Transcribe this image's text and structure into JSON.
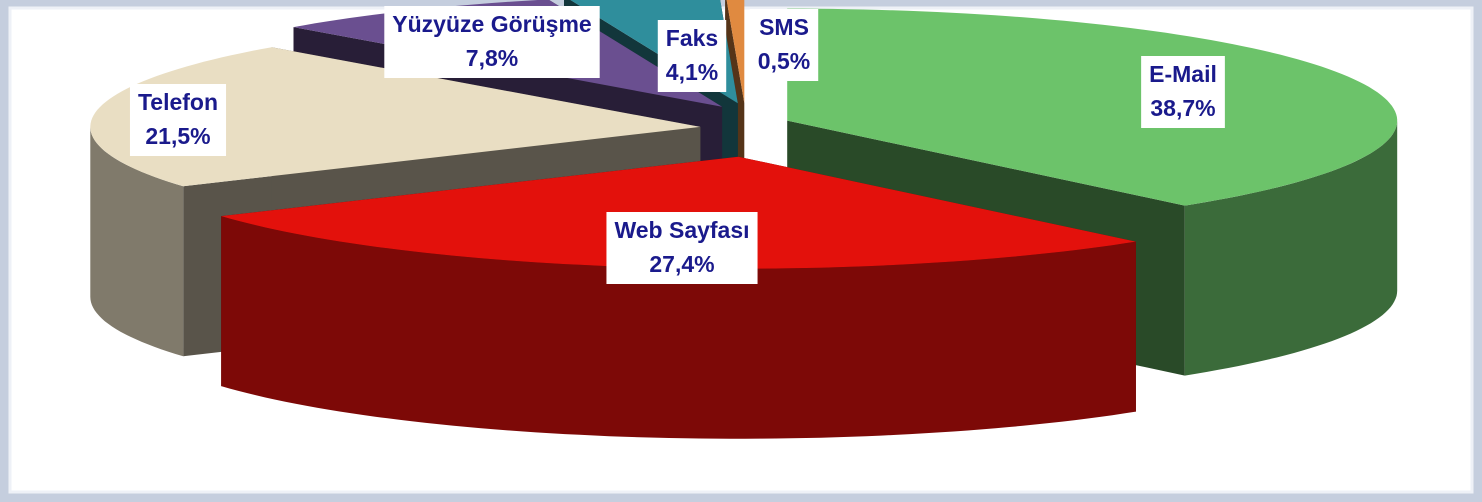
{
  "chart_data": {
    "type": "pie3d",
    "categories": [
      "E-Mail",
      "Web Sayfası",
      "Telefon",
      "Yüzyüze Görüşme",
      "Faks",
      "SMS"
    ],
    "values": [
      38.7,
      27.4,
      21.5,
      7.8,
      4.1,
      0.5
    ],
    "value_labels": [
      "38,7%",
      "27,4%",
      "21,5%",
      "7,8%",
      "4,1%",
      "0,5%"
    ],
    "colors": [
      "#6cc36a",
      "#e3110c",
      "#e9dec3",
      "#6a4f90",
      "#2f8e9c",
      "#e08a40"
    ]
  }
}
